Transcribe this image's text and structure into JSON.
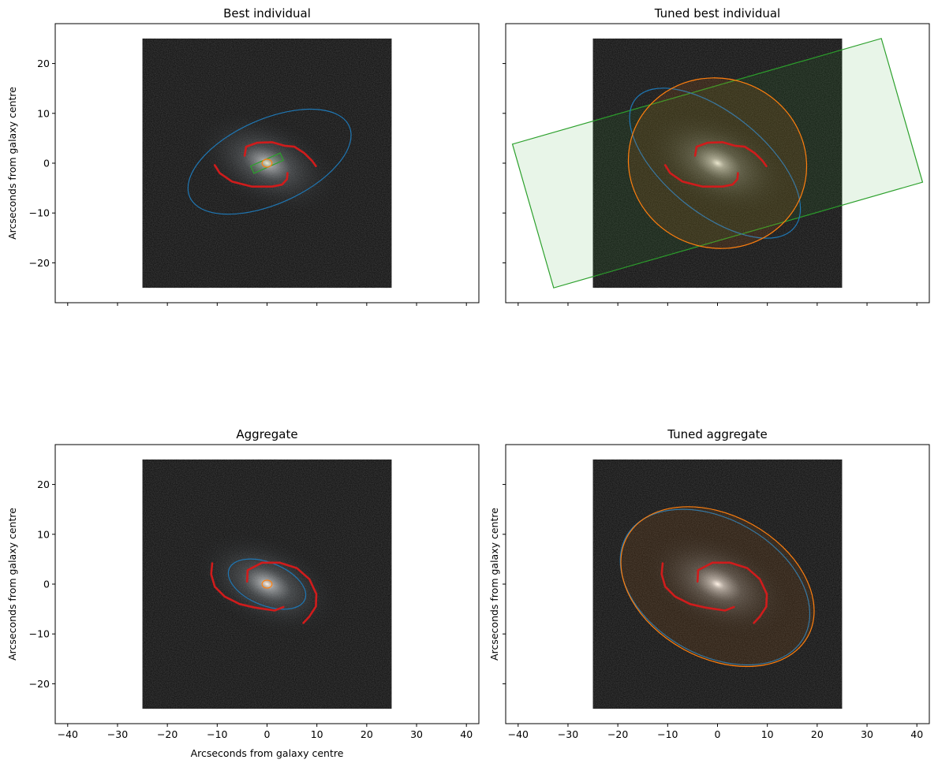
{
  "figure": {
    "colors": {
      "disk": "#1f77b4",
      "bulge": "#ff7f0e",
      "bar": "#2ca02c",
      "bar_fill": "#e9f3e7",
      "arms": "#d01c1c",
      "image_bg": "#0a0a0a"
    }
  },
  "chart_data": [
    {
      "type": "image",
      "title": "Best individual",
      "xlabel": "",
      "ylabel": "Arcseconds from galaxy centre",
      "xlim": [
        -42.5,
        42.5
      ],
      "ylim": [
        -28,
        28
      ],
      "xticks": [
        -40,
        -30,
        -20,
        -10,
        0,
        10,
        20,
        30,
        40
      ],
      "yticks": [
        -20,
        -10,
        0,
        10,
        20
      ],
      "show_xtick_labels": false,
      "show_ytick_labels": true,
      "image_extent": [
        -25,
        25,
        -25,
        25
      ],
      "galaxy_core_glow": 0.55,
      "components": {
        "disk": {
          "cx": 0.5,
          "cy": 0.3,
          "rx": 17.5,
          "ry": 8.5,
          "angle_deg": 24,
          "fill_opacity": 0
        },
        "bulge": {
          "cx": 0,
          "cy": 0,
          "rx": 1.0,
          "ry": 0.8,
          "angle_deg": 0,
          "fill_opacity": 0.1
        },
        "bar": {
          "cx": 0,
          "cy": 0,
          "w": 6.5,
          "h": 1.6,
          "angle_deg": 24,
          "fill_opacity": 0.1
        }
      },
      "arms": [
        [
          [
            -4.5,
            1.5
          ],
          [
            -4.2,
            3.3
          ],
          [
            -2,
            4.1
          ],
          [
            1,
            4.2
          ],
          [
            3.5,
            3.5
          ],
          [
            5.5,
            3.3
          ],
          [
            7.5,
            2.0
          ],
          [
            9,
            0.5
          ],
          [
            9.8,
            -0.6
          ]
        ],
        [
          [
            -10.5,
            -0.4
          ],
          [
            -9.5,
            -2
          ],
          [
            -7,
            -3.7
          ],
          [
            -3,
            -4.7
          ],
          [
            1,
            -4.7
          ],
          [
            3,
            -4.3
          ],
          [
            4,
            -3.2
          ],
          [
            4.1,
            -2.0
          ]
        ]
      ]
    },
    {
      "type": "image",
      "title": "Tuned best individual",
      "xlabel": "",
      "ylabel": "",
      "xlim": [
        -42.5,
        42.5
      ],
      "ylim": [
        -28,
        28
      ],
      "xticks": [
        -40,
        -30,
        -20,
        -10,
        0,
        10,
        20,
        30,
        40
      ],
      "yticks": [
        -20,
        -10,
        0,
        10,
        20
      ],
      "show_xtick_labels": false,
      "show_ytick_labels": false,
      "image_extent": [
        -25,
        25,
        -25,
        25
      ],
      "galaxy_core_glow": 0.65,
      "components": {
        "disk": {
          "cx": -0.5,
          "cy": 0,
          "rx": 20.5,
          "ry": 10,
          "angle_deg": -39,
          "fill_opacity": 0
        },
        "bulge": {
          "cx": 0,
          "cy": 0,
          "rx": 18,
          "ry": 17,
          "angle_deg": -20,
          "fill_opacity": 0.12
        },
        "bar": {
          "cx": 0,
          "cy": 0,
          "w": 77,
          "h": 30,
          "angle_deg": 16,
          "fill_opacity": 0.11
        }
      },
      "arms": [
        [
          [
            -4.5,
            1.5
          ],
          [
            -4.2,
            3.3
          ],
          [
            -2,
            4.1
          ],
          [
            1,
            4.2
          ],
          [
            3.5,
            3.5
          ],
          [
            5.5,
            3.3
          ],
          [
            7.5,
            2.0
          ],
          [
            9,
            0.5
          ],
          [
            9.8,
            -0.6
          ]
        ],
        [
          [
            -10.5,
            -0.4
          ],
          [
            -9.5,
            -2
          ],
          [
            -7,
            -3.7
          ],
          [
            -3,
            -4.7
          ],
          [
            1,
            -4.7
          ],
          [
            3,
            -4.3
          ],
          [
            4,
            -3.2
          ],
          [
            4.1,
            -2.0
          ]
        ]
      ]
    },
    {
      "type": "image",
      "title": "Aggregate",
      "xlabel": "Arcseconds from galaxy centre",
      "ylabel": "Arcseconds from galaxy centre",
      "xlim": [
        -42.5,
        42.5
      ],
      "ylim": [
        -28,
        28
      ],
      "xticks": [
        -40,
        -30,
        -20,
        -10,
        0,
        10,
        20,
        30,
        40
      ],
      "yticks": [
        -20,
        -10,
        0,
        10,
        20
      ],
      "show_xtick_labels": true,
      "show_ytick_labels": true,
      "image_extent": [
        -25,
        25,
        -25,
        25
      ],
      "galaxy_core_glow": 0.55,
      "components": {
        "disk": {
          "cx": 0,
          "cy": 0,
          "rx": 8.2,
          "ry": 4.3,
          "angle_deg": -22,
          "fill_opacity": 0
        },
        "bulge": {
          "cx": 0,
          "cy": 0,
          "rx": 1.0,
          "ry": 0.8,
          "angle_deg": 0,
          "fill_opacity": 0.1
        }
      },
      "arms": [
        [
          [
            -4,
            0.5
          ],
          [
            -3.9,
            2.8
          ],
          [
            -1,
            4.3
          ],
          [
            2.5,
            4.3
          ],
          [
            6,
            3.2
          ],
          [
            8.5,
            1
          ],
          [
            9.9,
            -2
          ],
          [
            9.8,
            -4.5
          ],
          [
            8.5,
            -6.5
          ],
          [
            7.3,
            -7.8
          ]
        ],
        [
          [
            -11,
            4.2
          ],
          [
            -11.2,
            2
          ],
          [
            -10.5,
            -0.5
          ],
          [
            -8.5,
            -2.5
          ],
          [
            -5.5,
            -4
          ],
          [
            -2.5,
            -4.7
          ],
          [
            1.5,
            -5.3
          ],
          [
            3.3,
            -4.6
          ]
        ]
      ]
    },
    {
      "type": "image",
      "title": "Tuned aggregate",
      "xlabel": "",
      "ylabel": "Arcseconds from galaxy centre",
      "xlim": [
        -42.5,
        42.5
      ],
      "ylim": [
        -28,
        28
      ],
      "xticks": [
        -40,
        -30,
        -20,
        -10,
        0,
        10,
        20,
        30,
        40
      ],
      "yticks": [
        -20,
        -10,
        0,
        10,
        20
      ],
      "show_xtick_labels": true,
      "show_ytick_labels": false,
      "image_extent": [
        -25,
        25,
        -25,
        25
      ],
      "galaxy_core_glow": 0.65,
      "components": {
        "disk": {
          "cx": -0.5,
          "cy": -0.6,
          "rx": 20.5,
          "ry": 13.6,
          "angle_deg": -30,
          "fill_opacity": 0
        },
        "bulge": {
          "cx": 0,
          "cy": -0.5,
          "rx": 20.7,
          "ry": 14.3,
          "angle_deg": -29,
          "fill_opacity": 0.1
        }
      },
      "arms": [
        [
          [
            -4,
            0.5
          ],
          [
            -3.9,
            2.8
          ],
          [
            -1,
            4.3
          ],
          [
            2.5,
            4.3
          ],
          [
            6,
            3.2
          ],
          [
            8.5,
            1
          ],
          [
            9.9,
            -2
          ],
          [
            9.8,
            -4.5
          ],
          [
            8.5,
            -6.5
          ],
          [
            7.3,
            -7.8
          ]
        ],
        [
          [
            -11,
            4.2
          ],
          [
            -11.2,
            2
          ],
          [
            -10.5,
            -0.5
          ],
          [
            -8.5,
            -2.5
          ],
          [
            -5.5,
            -4
          ],
          [
            -2.5,
            -4.7
          ],
          [
            1.5,
            -5.3
          ],
          [
            3.3,
            -4.6
          ]
        ]
      ]
    }
  ]
}
